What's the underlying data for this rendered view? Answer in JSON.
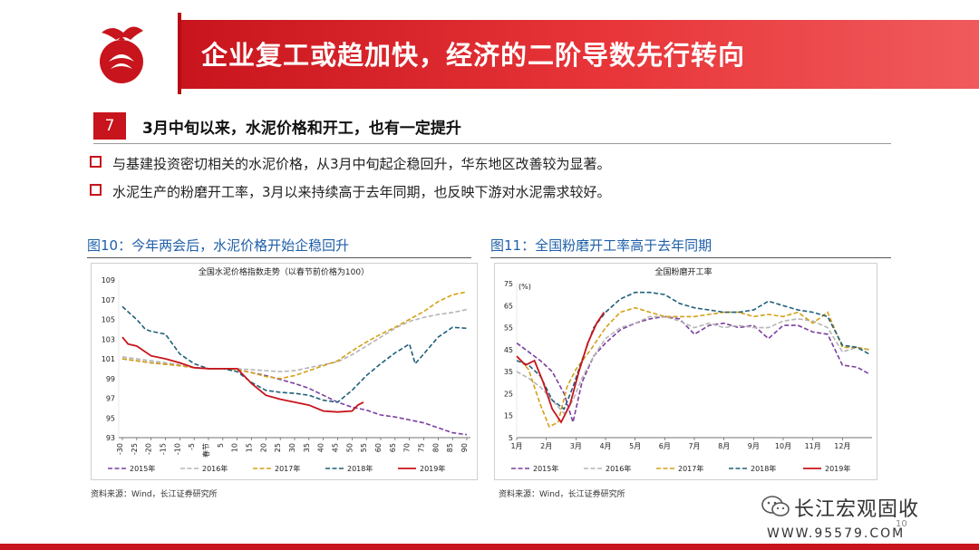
{
  "header": {
    "title": "企业复工或趋加快，经济的二阶导数先行转向"
  },
  "section": {
    "number": "7",
    "title": "3月中旬以来，水泥价格和开工，也有一定提升"
  },
  "bullets": [
    "与基建投资密切相关的水泥价格，从3月中旬起企稳回升，华东地区改善较为显著。",
    "水泥生产的粉磨开工率，3月以来持续高于去年同期，也反映下游对水泥需求较好。"
  ],
  "figures": [
    {
      "caption": "图10：今年两会后，水泥价格开始企稳回升",
      "source": "资料来源：Wind，长江证券研究所"
    },
    {
      "caption": "图11：全国粉磨开工率高于去年同期",
      "source": "资料来源：Wind，长江证券研究所"
    }
  ],
  "footer": {
    "brand": "长江宏观固收",
    "url": "WWW.95579.COM",
    "page": "10"
  },
  "colors": {
    "brand_red": "#c8141c",
    "s2015": "#7b3fa0",
    "s2016": "#b5b5b5",
    "s2017": "#d4a017",
    "s2018": "#1f5f7a",
    "s2019": "#c8141c"
  },
  "chart_data": [
    {
      "type": "line",
      "title": "全国水泥价格指数走势（以春节前价格为100）",
      "x": [
        -30,
        -25,
        -20,
        -15,
        -10,
        -5,
        0,
        5,
        10,
        15,
        20,
        25,
        30,
        35,
        40,
        45,
        50,
        55,
        60,
        65,
        70,
        75,
        80,
        85,
        90
      ],
      "x_tick_labels": [
        "-30",
        "-25",
        "-20",
        "-15",
        "-10",
        "-5",
        "春节",
        "5",
        "10",
        "15",
        "20",
        "25",
        "30",
        "35",
        "40",
        "45",
        "50",
        "55",
        "60",
        "65",
        "70",
        "75",
        "80",
        "85",
        "90"
      ],
      "ylim": [
        93,
        109
      ],
      "y_ticks": [
        93,
        95,
        97,
        99,
        101,
        103,
        105,
        107,
        109
      ],
      "series": [
        {
          "name": "2015年",
          "style": "dashed",
          "color": "#7b3fa0",
          "x": [
            -30,
            -20,
            -10,
            -5,
            0,
            5,
            10,
            15,
            20,
            25,
            30,
            35,
            40,
            45,
            50,
            55,
            60,
            65,
            70,
            75,
            80,
            85,
            90
          ],
          "values": [
            101.0,
            100.6,
            100.3,
            100.1,
            100.0,
            100.0,
            99.9,
            99.6,
            99.3,
            98.9,
            98.5,
            98.0,
            97.3,
            96.6,
            96.1,
            95.8,
            95.3,
            95.1,
            94.8,
            94.5,
            94.0,
            93.5,
            93.3
          ]
        },
        {
          "name": "2016年",
          "style": "dashed",
          "color": "#b5b5b5",
          "x": [
            -30,
            -20,
            -10,
            -5,
            0,
            5,
            10,
            15,
            20,
            25,
            30,
            35,
            40,
            45,
            50,
            55,
            60,
            65,
            70,
            75,
            80,
            85,
            90
          ],
          "values": [
            101.2,
            100.8,
            100.4,
            100.1,
            100.0,
            100.0,
            100.0,
            99.9,
            99.8,
            99.7,
            99.8,
            100.1,
            100.4,
            100.7,
            101.4,
            102.3,
            103.2,
            104.1,
            104.8,
            105.2,
            105.5,
            105.7,
            106.0
          ]
        },
        {
          "name": "2017年",
          "style": "dashed",
          "color": "#d4a017",
          "x": [
            -30,
            -20,
            -10,
            -5,
            0,
            5,
            10,
            15,
            20,
            25,
            30,
            35,
            40,
            45,
            50,
            55,
            60,
            65,
            70,
            75,
            80,
            85,
            90
          ],
          "values": [
            101.0,
            100.6,
            100.3,
            100.1,
            100.0,
            100.0,
            99.9,
            99.6,
            99.2,
            99.0,
            99.3,
            99.8,
            100.3,
            100.8,
            101.8,
            102.7,
            103.5,
            104.2,
            105.0,
            105.8,
            106.8,
            107.5,
            107.8
          ]
        },
        {
          "name": "2018年",
          "style": "dashed",
          "color": "#1f5f7a",
          "x": [
            -30,
            -27,
            -25,
            -22,
            -20,
            -15,
            -10,
            -5,
            0,
            5,
            10,
            15,
            20,
            25,
            30,
            35,
            40,
            45,
            50,
            55,
            60,
            65,
            70,
            72,
            75,
            80,
            85,
            90
          ],
          "values": [
            106.3,
            105.5,
            105.0,
            104.0,
            103.8,
            103.5,
            101.5,
            100.5,
            100.0,
            100.0,
            99.7,
            98.6,
            97.8,
            97.6,
            97.5,
            97.3,
            96.8,
            96.6,
            97.8,
            99.3,
            100.5,
            101.6,
            102.5,
            100.5,
            101.5,
            103.2,
            104.2,
            104.1
          ]
        },
        {
          "name": "2019年",
          "style": "solid",
          "color": "#c8141c",
          "x": [
            -30,
            -28,
            -25,
            -20,
            -15,
            -10,
            -5,
            0,
            5,
            10,
            15,
            20,
            25,
            30,
            35,
            40,
            45,
            50,
            52,
            54
          ],
          "values": [
            103.2,
            102.5,
            102.3,
            101.3,
            101.0,
            100.6,
            100.1,
            100.0,
            100.0,
            100.0,
            98.5,
            97.3,
            96.9,
            96.6,
            96.3,
            95.7,
            95.6,
            95.7,
            96.3,
            96.6
          ]
        }
      ]
    },
    {
      "type": "line",
      "title": "全国粉磨开工率",
      "ylabel": "(%)",
      "x_tick_labels": [
        "1月",
        "2月",
        "3月",
        "4月",
        "5月",
        "6月",
        "7月",
        "8月",
        "9月",
        "10月",
        "11月",
        "12月"
      ],
      "ylim": [
        5,
        75
      ],
      "y_ticks": [
        5,
        15,
        25,
        35,
        45,
        55,
        65,
        75
      ],
      "series": [
        {
          "name": "2015年",
          "style": "dashed",
          "color": "#7b3fa0",
          "x": [
            1,
            1.4,
            1.8,
            2.2,
            2.6,
            2.9,
            3.2,
            3.6,
            4,
            4.5,
            5,
            5.5,
            6,
            6.5,
            7,
            7.5,
            8,
            8.5,
            9,
            9.5,
            10,
            10.5,
            11,
            11.5,
            12,
            12.5,
            12.9
          ],
          "values": [
            48,
            44,
            40,
            35,
            25,
            12,
            30,
            42,
            48,
            54,
            57,
            59,
            60,
            59,
            52,
            56,
            57,
            55,
            56,
            50,
            56,
            56,
            53,
            52,
            38,
            37,
            34
          ]
        },
        {
          "name": "2016年",
          "style": "dashed",
          "color": "#b5b5b5",
          "x": [
            1,
            1.4,
            1.8,
            2.2,
            2.6,
            2.9,
            3.2,
            3.6,
            4,
            4.5,
            5,
            5.5,
            6,
            6.5,
            7,
            7.5,
            8,
            8.5,
            9,
            9.5,
            10,
            10.5,
            11,
            11.5,
            12,
            12.5,
            12.9
          ],
          "values": [
            35,
            32,
            28,
            22,
            16,
            22,
            32,
            42,
            50,
            55,
            57,
            60,
            60,
            58,
            55,
            57,
            55,
            56,
            55,
            55,
            58,
            59,
            58,
            55,
            44,
            46,
            45
          ]
        },
        {
          "name": "2017年",
          "style": "dashed",
          "color": "#d4a017",
          "x": [
            1,
            1.4,
            1.8,
            2.1,
            2.4,
            2.7,
            3,
            3.5,
            4,
            4.5,
            5,
            5.5,
            6,
            6.5,
            7,
            7.5,
            8,
            8.5,
            9,
            9.5,
            10,
            10.5,
            11,
            11.5,
            12,
            12.5,
            12.9
          ],
          "values": [
            42,
            36,
            20,
            10,
            12,
            28,
            36,
            45,
            55,
            62,
            64,
            62,
            60,
            60,
            60,
            61,
            62,
            62,
            60,
            61,
            60,
            62,
            57,
            62,
            46,
            46,
            45
          ]
        },
        {
          "name": "2018年",
          "style": "dashed",
          "color": "#1f5f7a",
          "x": [
            1,
            1.4,
            1.8,
            2.2,
            2.6,
            2.9,
            3.2,
            3.6,
            4,
            4.5,
            5,
            5.5,
            6,
            6.5,
            7,
            7.5,
            8,
            8.5,
            9,
            9.5,
            10,
            10.5,
            11,
            11.5,
            12,
            12.5,
            12.9
          ],
          "values": [
            40,
            38,
            33,
            22,
            18,
            28,
            40,
            55,
            62,
            68,
            71,
            71,
            70,
            66,
            64,
            63,
            62,
            62,
            63,
            67,
            65,
            63,
            62,
            60,
            47,
            46,
            43
          ]
        },
        {
          "name": "2019年",
          "style": "solid",
          "color": "#c8141c",
          "x": [
            1,
            1.3,
            1.6,
            1.9,
            2.2,
            2.5,
            2.8,
            3.1,
            3.4,
            3.7,
            3.95
          ],
          "values": [
            42,
            38,
            40,
            30,
            18,
            12,
            20,
            35,
            48,
            57,
            62
          ]
        }
      ]
    }
  ]
}
